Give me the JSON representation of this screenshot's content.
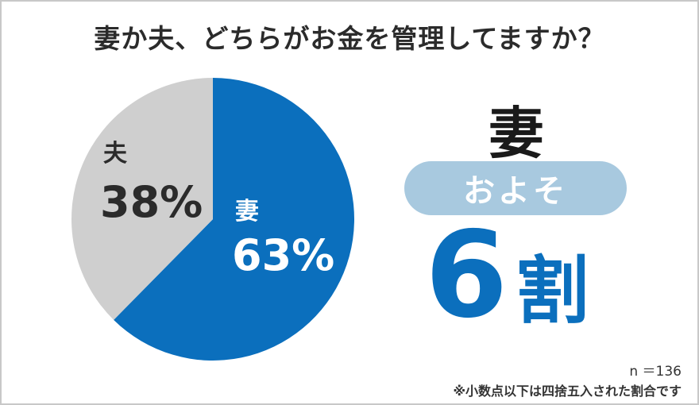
{
  "title": "妻か夫、どちらがお金を管理してますか？",
  "colors": {
    "wife": "#0b6fbd",
    "husband": "#cfcfcf",
    "pill": "#a8c9df",
    "accent": "#0b6fbd"
  },
  "chart_data": {
    "type": "pie",
    "title": "妻か夫、どちらがお金を管理してますか？",
    "slices": [
      {
        "label": "妻",
        "value": 63,
        "display": "63%"
      },
      {
        "label": "夫",
        "value": 38,
        "display": "38%"
      }
    ]
  },
  "highlight": {
    "word": "妻",
    "pill": "およそ",
    "number": "6",
    "unit": "割"
  },
  "notes": {
    "n": "n ＝136",
    "footnote": "※小数点以下は四捨五入された割合です"
  }
}
